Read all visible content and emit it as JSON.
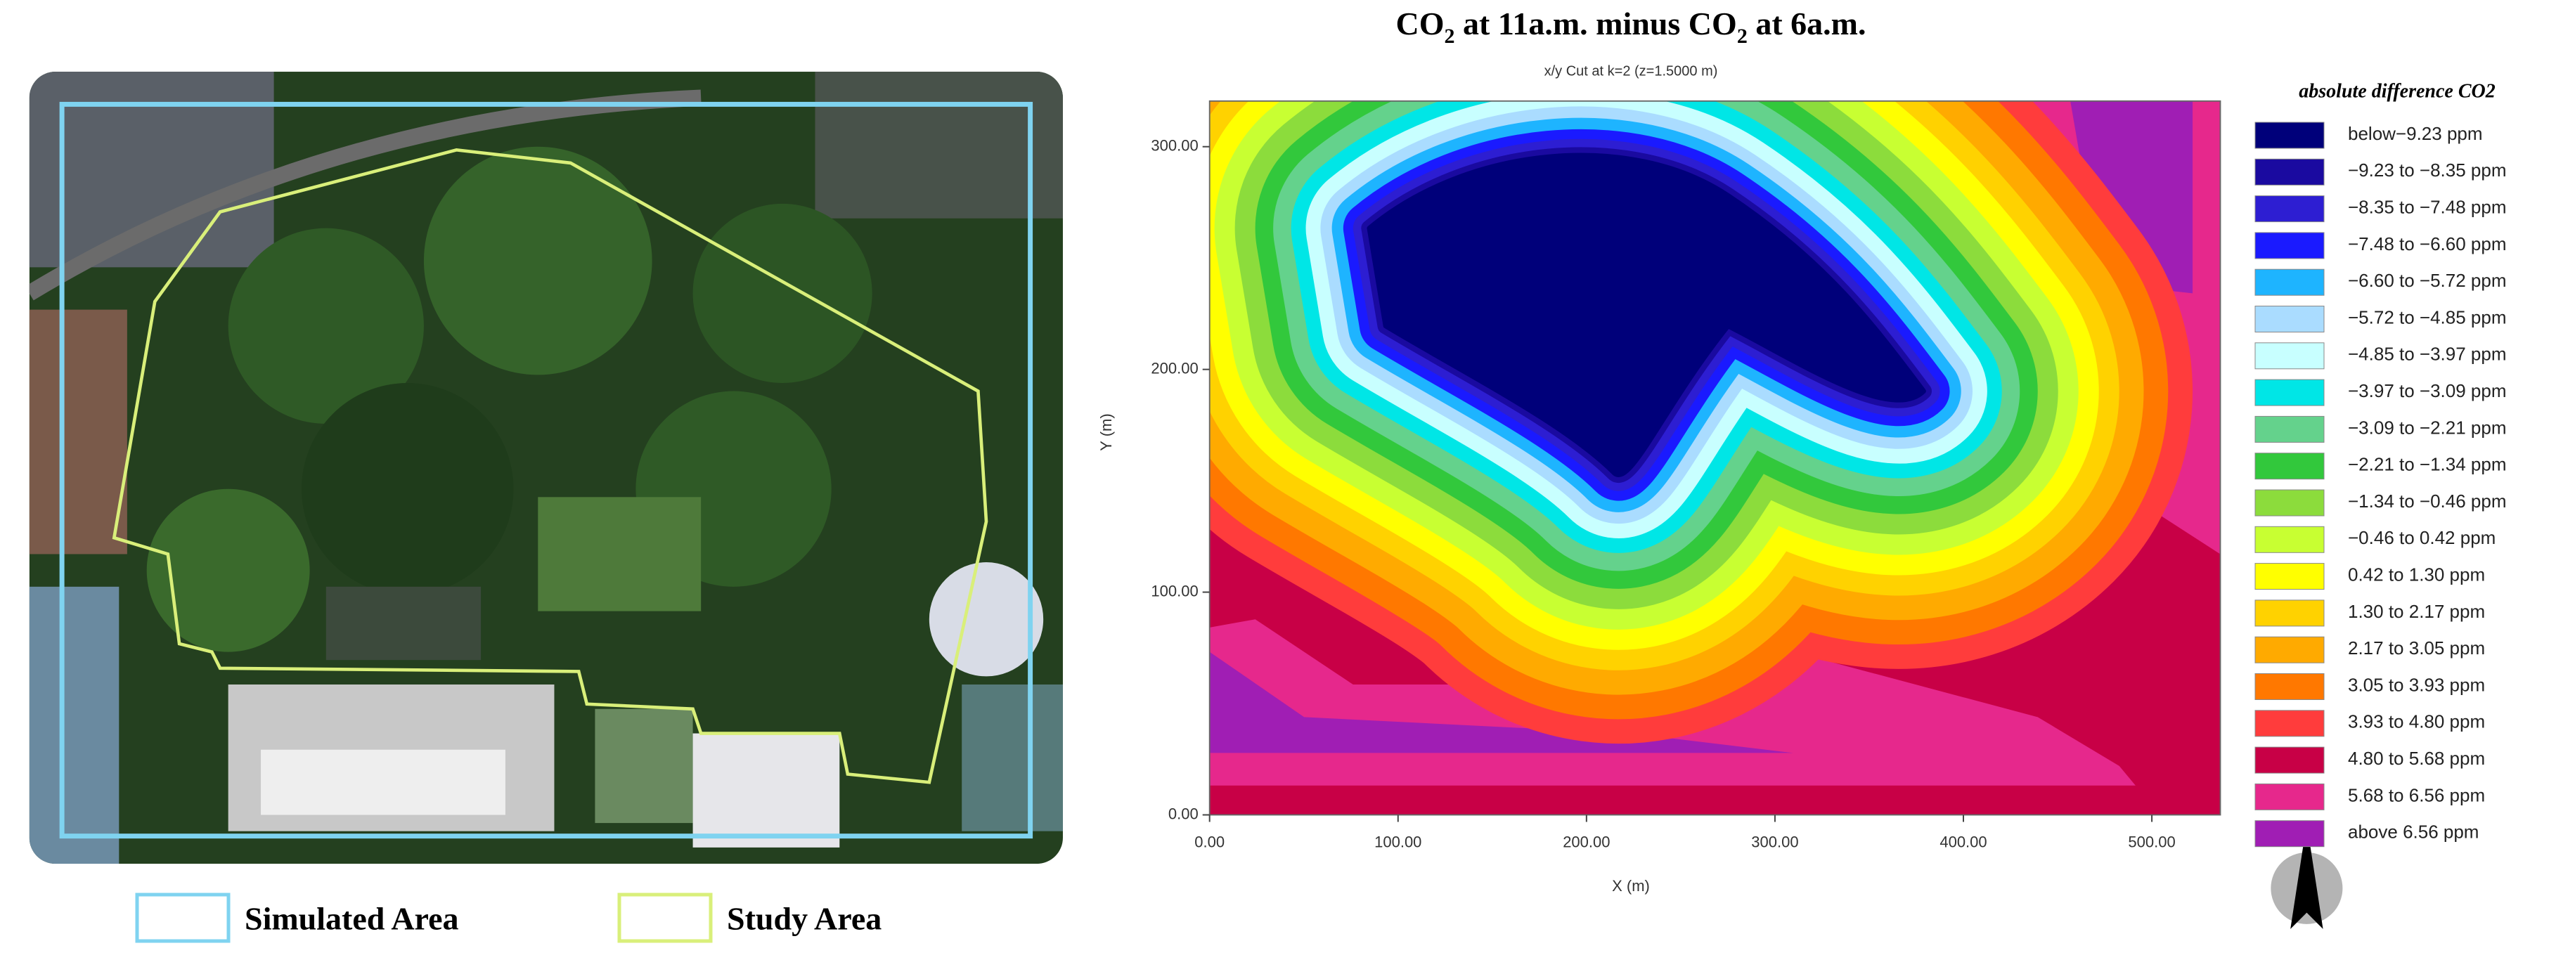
{
  "left_panel": {
    "legend": [
      {
        "label": "Simulated Area",
        "color": "#7fd3f0"
      },
      {
        "label": "Study Area",
        "color": "#d9ef7a"
      }
    ]
  },
  "right_panel": {
    "title_parts": [
      "CO",
      "2",
      " at 11a.m. minus CO",
      "2",
      " at 6a.m."
    ],
    "subtitle": "x/y Cut at k=2 (z=1.5000 m)",
    "x_label": "X (m)",
    "y_label": "Y (m)",
    "x_ticks": [
      "0.00",
      "100.00",
      "200.00",
      "300.00",
      "400.00",
      "500.00"
    ],
    "y_ticks": [
      "0.00",
      "100.00",
      "200.00",
      "300.00"
    ],
    "legend_title": "absolute difference CO2",
    "legend": [
      {
        "label": "below−9.23 ppm",
        "color": "#00007a"
      },
      {
        "label": "−9.23 to −8.35 ppm",
        "color": "#1a0aa0"
      },
      {
        "label": "−8.35 to −7.48 ppm",
        "color": "#2d1ed2"
      },
      {
        "label": "−7.48 to −6.60 ppm",
        "color": "#1a1aff"
      },
      {
        "label": "−6.60 to −5.72 ppm",
        "color": "#1eb4ff"
      },
      {
        "label": "−5.72 to −4.85 ppm",
        "color": "#aadcff"
      },
      {
        "label": "−4.85 to −3.97 ppm",
        "color": "#c8ffff"
      },
      {
        "label": "−3.97 to −3.09 ppm",
        "color": "#00e6e6"
      },
      {
        "label": "−3.09 to −2.21 ppm",
        "color": "#64d28c"
      },
      {
        "label": "−2.21 to −1.34 ppm",
        "color": "#32c83c"
      },
      {
        "label": "−1.34 to −0.46 ppm",
        "color": "#8cdc3c"
      },
      {
        "label": "−0.46 to 0.42 ppm",
        "color": "#c8ff32"
      },
      {
        "label": "0.42 to 1.30 ppm",
        "color": "#ffff00"
      },
      {
        "label": "1.30 to 2.17 ppm",
        "color": "#ffd200"
      },
      {
        "label": "2.17 to 3.05 ppm",
        "color": "#ffaa00"
      },
      {
        "label": "3.05 to 3.93 ppm",
        "color": "#ff7800"
      },
      {
        "label": "3.93 to 4.80 ppm",
        "color": "#ff3c3c"
      },
      {
        "label": "4.80 to 5.68 ppm",
        "color": "#c80046"
      },
      {
        "label": "5.68 to 6.56 ppm",
        "color": "#e6288c"
      },
      {
        "label": "above 6.56 ppm",
        "color": "#a01eb4"
      }
    ]
  }
}
